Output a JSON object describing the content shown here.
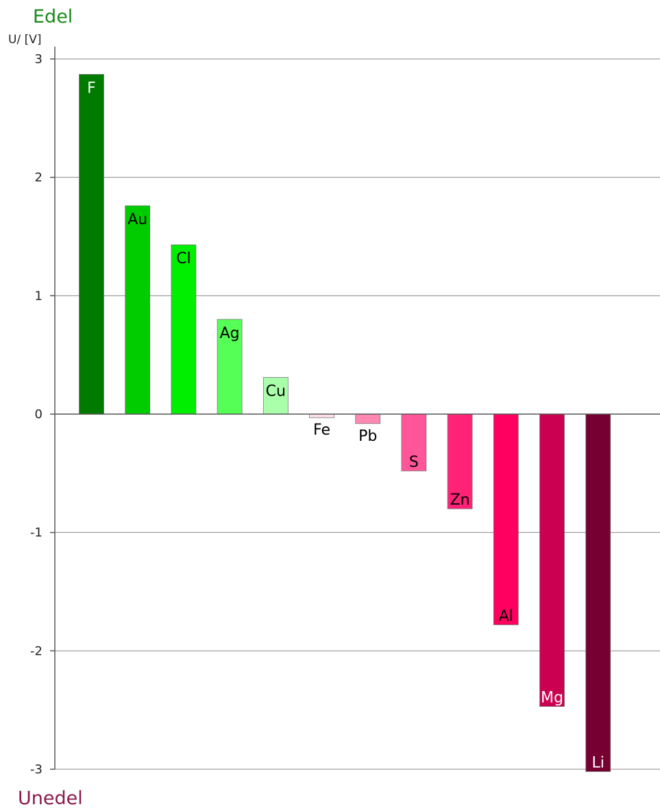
{
  "chart_data": {
    "type": "bar",
    "title": "Edel",
    "bottom_label": "Unedel",
    "ylabel": "U/ [V]",
    "ylim": [
      -3,
      3
    ],
    "yticks": [
      "3",
      "2",
      "1",
      "0",
      "-1",
      "-2",
      "-3"
    ],
    "grid": true,
    "categories": [
      "F",
      "Au",
      "Cl",
      "Ag",
      "Cu",
      "Fe",
      "Pb",
      "S",
      "Zn",
      "Al",
      "Mg",
      "Li"
    ],
    "values": [
      2.87,
      1.76,
      1.43,
      0.8,
      0.31,
      -0.03,
      -0.08,
      -0.48,
      -0.8,
      -1.78,
      -2.47,
      -3.02
    ],
    "colors": [
      "#007b00",
      "#00cc00",
      "#00ee00",
      "#55ff55",
      "#aaffaa",
      "#ffe0ea",
      "#ff88b0",
      "#ff5599",
      "#ff2277",
      "#ff0060",
      "#cc0050",
      "#770033"
    ],
    "label_colors": [
      "#ffffff",
      "#000000",
      "#000000",
      "#000000",
      "#000000",
      "#000000",
      "#000000",
      "#000000",
      "#000000",
      "#000000",
      "#ffffff",
      "#ffffff"
    ],
    "title_color": "#1a8a1a",
    "bottom_label_color": "#8a1a4a"
  }
}
